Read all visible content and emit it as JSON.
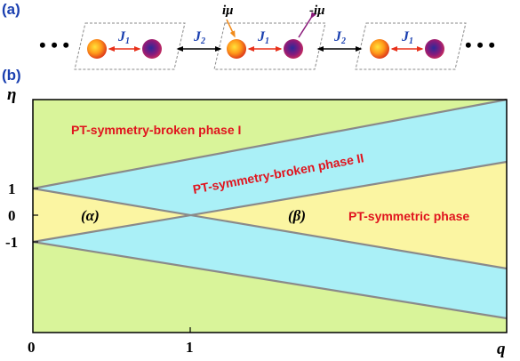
{
  "panel_a": {
    "label": "(a)",
    "ellipsis": "• • •",
    "coupling_intra": "J",
    "coupling_intra_sub": "1",
    "coupling_inter": "J",
    "coupling_inter_sub": "2",
    "gain_label": "iμ",
    "loss_label": "-iμ",
    "colors": {
      "gain_site": "#f7a21a",
      "loss_site": "#8a1a7a",
      "intra_arrow": "#e8301a",
      "inter_arrow": "#000000"
    }
  },
  "panel_b": {
    "label": "(b)",
    "y_axis_label": "η",
    "x_axis_label": "q",
    "x_ticks": [
      "0",
      "1"
    ],
    "y_ticks": [
      "1",
      "0",
      "-1"
    ],
    "phase_broken_1": "PT-symmetry-broken phase I",
    "phase_broken_2": "PT-symmetry-broken phase II",
    "phase_symmetric": "PT-symmetric phase",
    "region_alpha": "(α)",
    "region_beta": "(β)",
    "colors": {
      "broken_1": "#d9f49a",
      "broken_2": "#aaf0f7",
      "symmetric": "#fbf5a2",
      "boundary": "#8a8a8a"
    }
  }
}
